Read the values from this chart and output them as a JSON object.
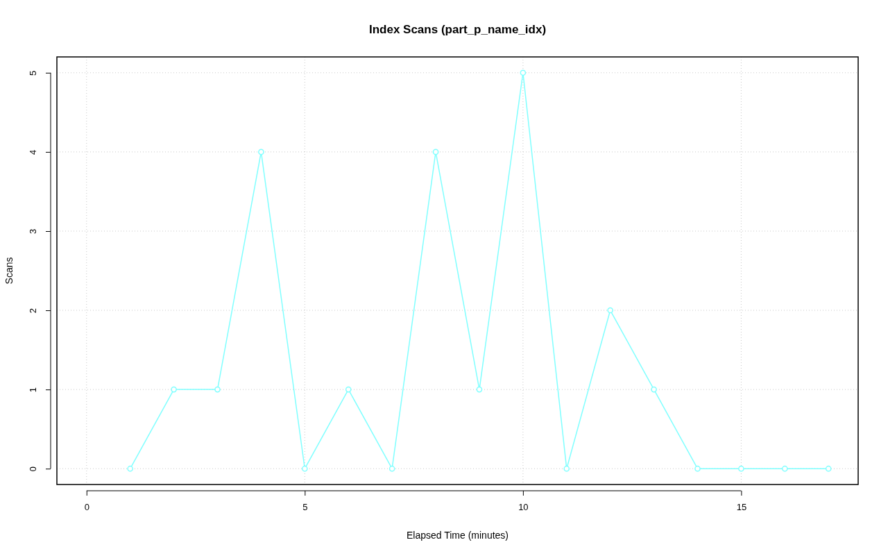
{
  "chart_data": {
    "type": "line",
    "title": "Index Scans (part_p_name_idx)",
    "xlabel": "Elapsed Time (minutes)",
    "ylabel": "Scans",
    "x": [
      1,
      2,
      3,
      4,
      5,
      6,
      7,
      8,
      9,
      10,
      11,
      12,
      13,
      14,
      15,
      16,
      17
    ],
    "series": [
      {
        "color": "#80ffff",
        "values": [
          0,
          1,
          1,
          4,
          0,
          1,
          0,
          4,
          1,
          5,
          0,
          2,
          1,
          0,
          0,
          0,
          0
        ]
      }
    ],
    "xlim": [
      -0.68,
      17.68
    ],
    "xticks": [
      0,
      5,
      10,
      15
    ],
    "ylim": [
      -0.2,
      5.2
    ],
    "yticks": [
      0,
      1,
      2,
      3,
      4,
      5
    ],
    "grid": true,
    "marker": "circle",
    "line_style": "solid"
  }
}
